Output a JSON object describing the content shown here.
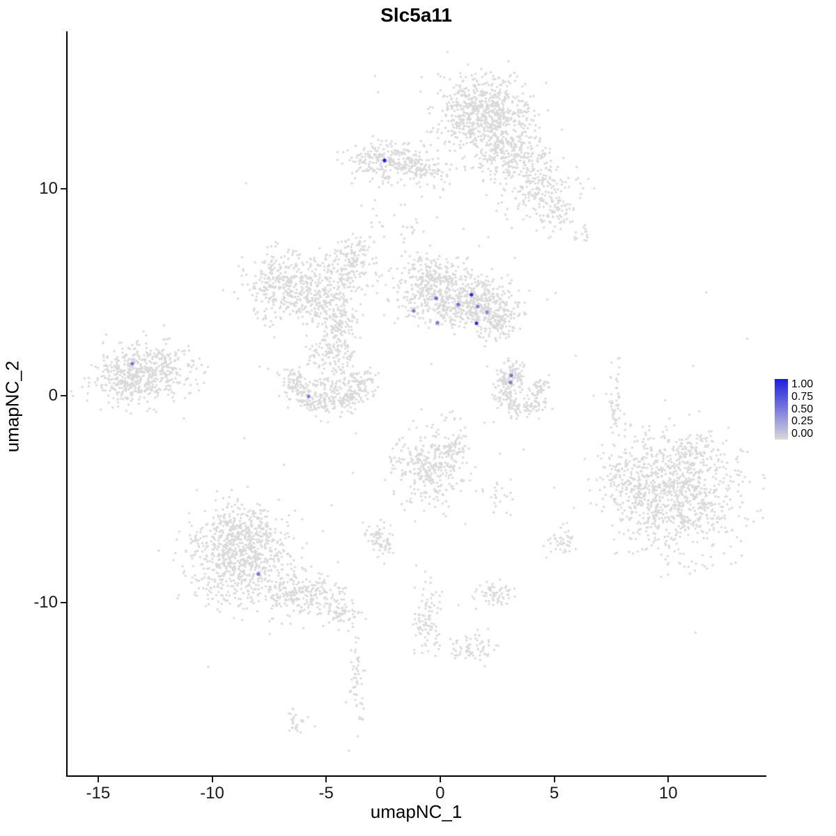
{
  "title": "Slc5a11",
  "axes": {
    "xlabel": "umapNC_1",
    "ylabel": "umapNC_2",
    "x_ticks": [
      -15,
      -10,
      -5,
      0,
      5,
      10
    ],
    "y_ticks": [
      10,
      0,
      -10
    ],
    "x_range": [
      -16.4,
      14.3
    ],
    "y_range": [
      -18.4,
      17.6
    ]
  },
  "legend": {
    "labels": [
      "1.00",
      "0.75",
      "0.50",
      "0.25",
      "0.00"
    ],
    "low_color": "#d9d9d9",
    "high_color": "#1d1de0"
  },
  "chart_data": {
    "type": "scatter",
    "title": "Slc5a11",
    "xlabel": "umapNC_1",
    "ylabel": "umapNC_2",
    "xlim": [
      -16.4,
      14.3
    ],
    "ylim": [
      -18.4,
      17.6
    ],
    "grid": false,
    "legend_position": "right",
    "point_color_low": "#d9d9d9",
    "point_color_high": "#1d1de0",
    "background_clusters": [
      {
        "cx": 1.8,
        "cy": 13.7,
        "sx": 1.05,
        "sy": 0.85,
        "n": 650
      },
      {
        "cx": 3.1,
        "cy": 11.7,
        "sx": 0.85,
        "sy": 0.75,
        "n": 280
      },
      {
        "cx": 4.4,
        "cy": 9.9,
        "sx": 0.8,
        "sy": 0.75,
        "n": 180
      },
      {
        "cx": 5.0,
        "cy": 8.6,
        "sx": 0.45,
        "sy": 0.4,
        "n": 50
      },
      {
        "cx": -0.3,
        "cy": 10.9,
        "sx": 0.55,
        "sy": 0.55,
        "n": 45
      },
      {
        "cx": -2.3,
        "cy": 11.35,
        "sx": 0.8,
        "sy": 0.5,
        "n": 260
      },
      {
        "cx": -0.9,
        "cy": 11.0,
        "sx": 0.45,
        "sy": 0.3,
        "n": 50
      },
      {
        "cx": 0.3,
        "cy": 4.8,
        "sx": 1.2,
        "sy": 0.65,
        "n": 450
      },
      {
        "cx": -0.5,
        "cy": 5.9,
        "sx": 0.55,
        "sy": 0.5,
        "n": 130
      },
      {
        "cx": 1.8,
        "cy": 4.3,
        "sx": 0.85,
        "sy": 0.6,
        "n": 260
      },
      {
        "cx": 2.4,
        "cy": 3.5,
        "sx": 0.5,
        "sy": 0.35,
        "n": 80
      },
      {
        "cx": -7.0,
        "cy": 5.4,
        "sx": 0.8,
        "sy": 0.75,
        "n": 260
      },
      {
        "cx": -5.5,
        "cy": 4.7,
        "sx": 0.95,
        "sy": 0.7,
        "n": 260
      },
      {
        "cx": -4.2,
        "cy": 6.2,
        "sx": 0.7,
        "sy": 0.55,
        "n": 140
      },
      {
        "cx": -3.7,
        "cy": 7.1,
        "sx": 0.35,
        "sy": 0.35,
        "n": 50
      },
      {
        "cx": -4.4,
        "cy": 3.1,
        "sx": 0.4,
        "sy": 0.95,
        "n": 140
      },
      {
        "cx": -4.9,
        "cy": 1.9,
        "sx": 0.55,
        "sy": 0.4,
        "n": 80
      },
      {
        "cx": -13.4,
        "cy": 1.0,
        "sx": 0.9,
        "sy": 0.72,
        "n": 480
      },
      {
        "cx": -11.9,
        "cy": 1.6,
        "sx": 0.4,
        "sy": 0.5,
        "n": 70
      },
      {
        "cx": -11.1,
        "cy": 1.1,
        "sx": 0.45,
        "sy": 0.55,
        "n": 25
      },
      {
        "type": "arc",
        "cx": -4.9,
        "cy": 0.8,
        "rx": 1.55,
        "ry": 1.3,
        "a0": 160,
        "a1": 380,
        "w": 0.28,
        "n": 330
      },
      {
        "cx": -4.9,
        "cy": 0.6,
        "sx": 0.5,
        "sy": 0.35,
        "n": 60
      },
      {
        "cx": 3.1,
        "cy": 0.95,
        "sx": 0.32,
        "sy": 0.38,
        "n": 110
      },
      {
        "type": "arc",
        "cx": 3.6,
        "cy": 0.2,
        "rx": 0.85,
        "ry": 0.9,
        "a0": 140,
        "a1": 395,
        "w": 0.25,
        "n": 180
      },
      {
        "cx": 10.3,
        "cy": -4.7,
        "sx": 1.55,
        "sy": 1.35,
        "n": 850
      },
      {
        "cx": 8.4,
        "cy": -4.0,
        "sx": 0.6,
        "sy": 0.85,
        "n": 140
      },
      {
        "cx": 10.9,
        "cy": -2.6,
        "sx": 0.85,
        "sy": 0.45,
        "n": 90
      },
      {
        "cx": 10.5,
        "cy": -8.3,
        "sx": 0.8,
        "sy": 0.35,
        "n": 18
      },
      {
        "cx": -8.7,
        "cy": -7.9,
        "sx": 1.15,
        "sy": 1.05,
        "n": 750
      },
      {
        "cx": -9.0,
        "cy": -6.2,
        "sx": 0.65,
        "sy": 0.5,
        "n": 140
      },
      {
        "cx": -6.1,
        "cy": -9.6,
        "sx": 0.95,
        "sy": 0.5,
        "n": 220
      },
      {
        "cx": -4.4,
        "cy": -10.5,
        "sx": 0.5,
        "sy": 0.35,
        "n": 70
      },
      {
        "cx": -0.4,
        "cy": -3.6,
        "sx": 0.8,
        "sy": 0.85,
        "n": 300
      },
      {
        "cx": 0.6,
        "cy": -2.6,
        "sx": 0.45,
        "sy": 0.35,
        "n": 60
      },
      {
        "cx": 0.4,
        "cy": -1.5,
        "sx": 0.5,
        "sy": 0.6,
        "n": 20
      },
      {
        "cx": -2.6,
        "cy": -6.9,
        "sx": 0.35,
        "sy": 0.35,
        "n": 70
      },
      {
        "cx": 2.4,
        "cy": -9.5,
        "sx": 0.38,
        "sy": 0.3,
        "n": 60
      },
      {
        "cx": -0.6,
        "cy": -10.8,
        "sx": 0.3,
        "sy": 0.95,
        "n": 90
      },
      {
        "cx": 1.4,
        "cy": -12.2,
        "sx": 0.55,
        "sy": 0.35,
        "n": 70
      },
      {
        "cx": -3.7,
        "cy": -13.9,
        "sx": 0.18,
        "sy": 1.0,
        "n": 55
      },
      {
        "cx": -6.3,
        "cy": -15.9,
        "sx": 0.32,
        "sy": 0.3,
        "n": 25
      },
      {
        "cx": 7.7,
        "cy": -0.3,
        "sx": 0.18,
        "sy": 0.85,
        "n": 50
      },
      {
        "cx": 5.3,
        "cy": -7.1,
        "sx": 0.28,
        "sy": 0.32,
        "n": 40
      },
      {
        "cx": 2.5,
        "cy": -4.8,
        "sx": 0.45,
        "sy": 0.45,
        "n": 22
      },
      {
        "cx": 6.2,
        "cy": 7.8,
        "sx": 0.18,
        "sy": 0.35,
        "n": 14
      },
      {
        "cx": -2.9,
        "cy": 8.3,
        "sx": 0.25,
        "sy": 0.4,
        "n": 12
      },
      {
        "cx": -1.3,
        "cy": 8.0,
        "sx": 0.3,
        "sy": 0.8,
        "n": 18
      },
      {
        "cx": -1.0,
        "cy": 0.5,
        "sx": 7.5,
        "sy": 6.5,
        "n": 70
      }
    ],
    "expressing_points": [
      {
        "x": -2.44,
        "y": 11.37,
        "value": 1.0
      },
      {
        "x": 1.37,
        "y": 4.88,
        "value": 0.95
      },
      {
        "x": -0.18,
        "y": 4.71,
        "value": 0.6
      },
      {
        "x": 0.79,
        "y": 4.41,
        "value": 0.55
      },
      {
        "x": 1.65,
        "y": 4.31,
        "value": 0.5
      },
      {
        "x": -1.16,
        "y": 4.1,
        "value": 0.5
      },
      {
        "x": -0.12,
        "y": 3.53,
        "value": 0.5
      },
      {
        "x": 1.59,
        "y": 3.5,
        "value": 0.9
      },
      {
        "x": 2.05,
        "y": 4.04,
        "value": 0.45
      },
      {
        "x": 3.12,
        "y": 0.98,
        "value": 0.55
      },
      {
        "x": 3.08,
        "y": 0.64,
        "value": 0.5
      },
      {
        "x": -13.5,
        "y": 1.55,
        "value": 0.55
      },
      {
        "x": -5.77,
        "y": -0.03,
        "value": 0.5
      },
      {
        "x": -7.97,
        "y": -8.61,
        "value": 0.55
      }
    ]
  }
}
